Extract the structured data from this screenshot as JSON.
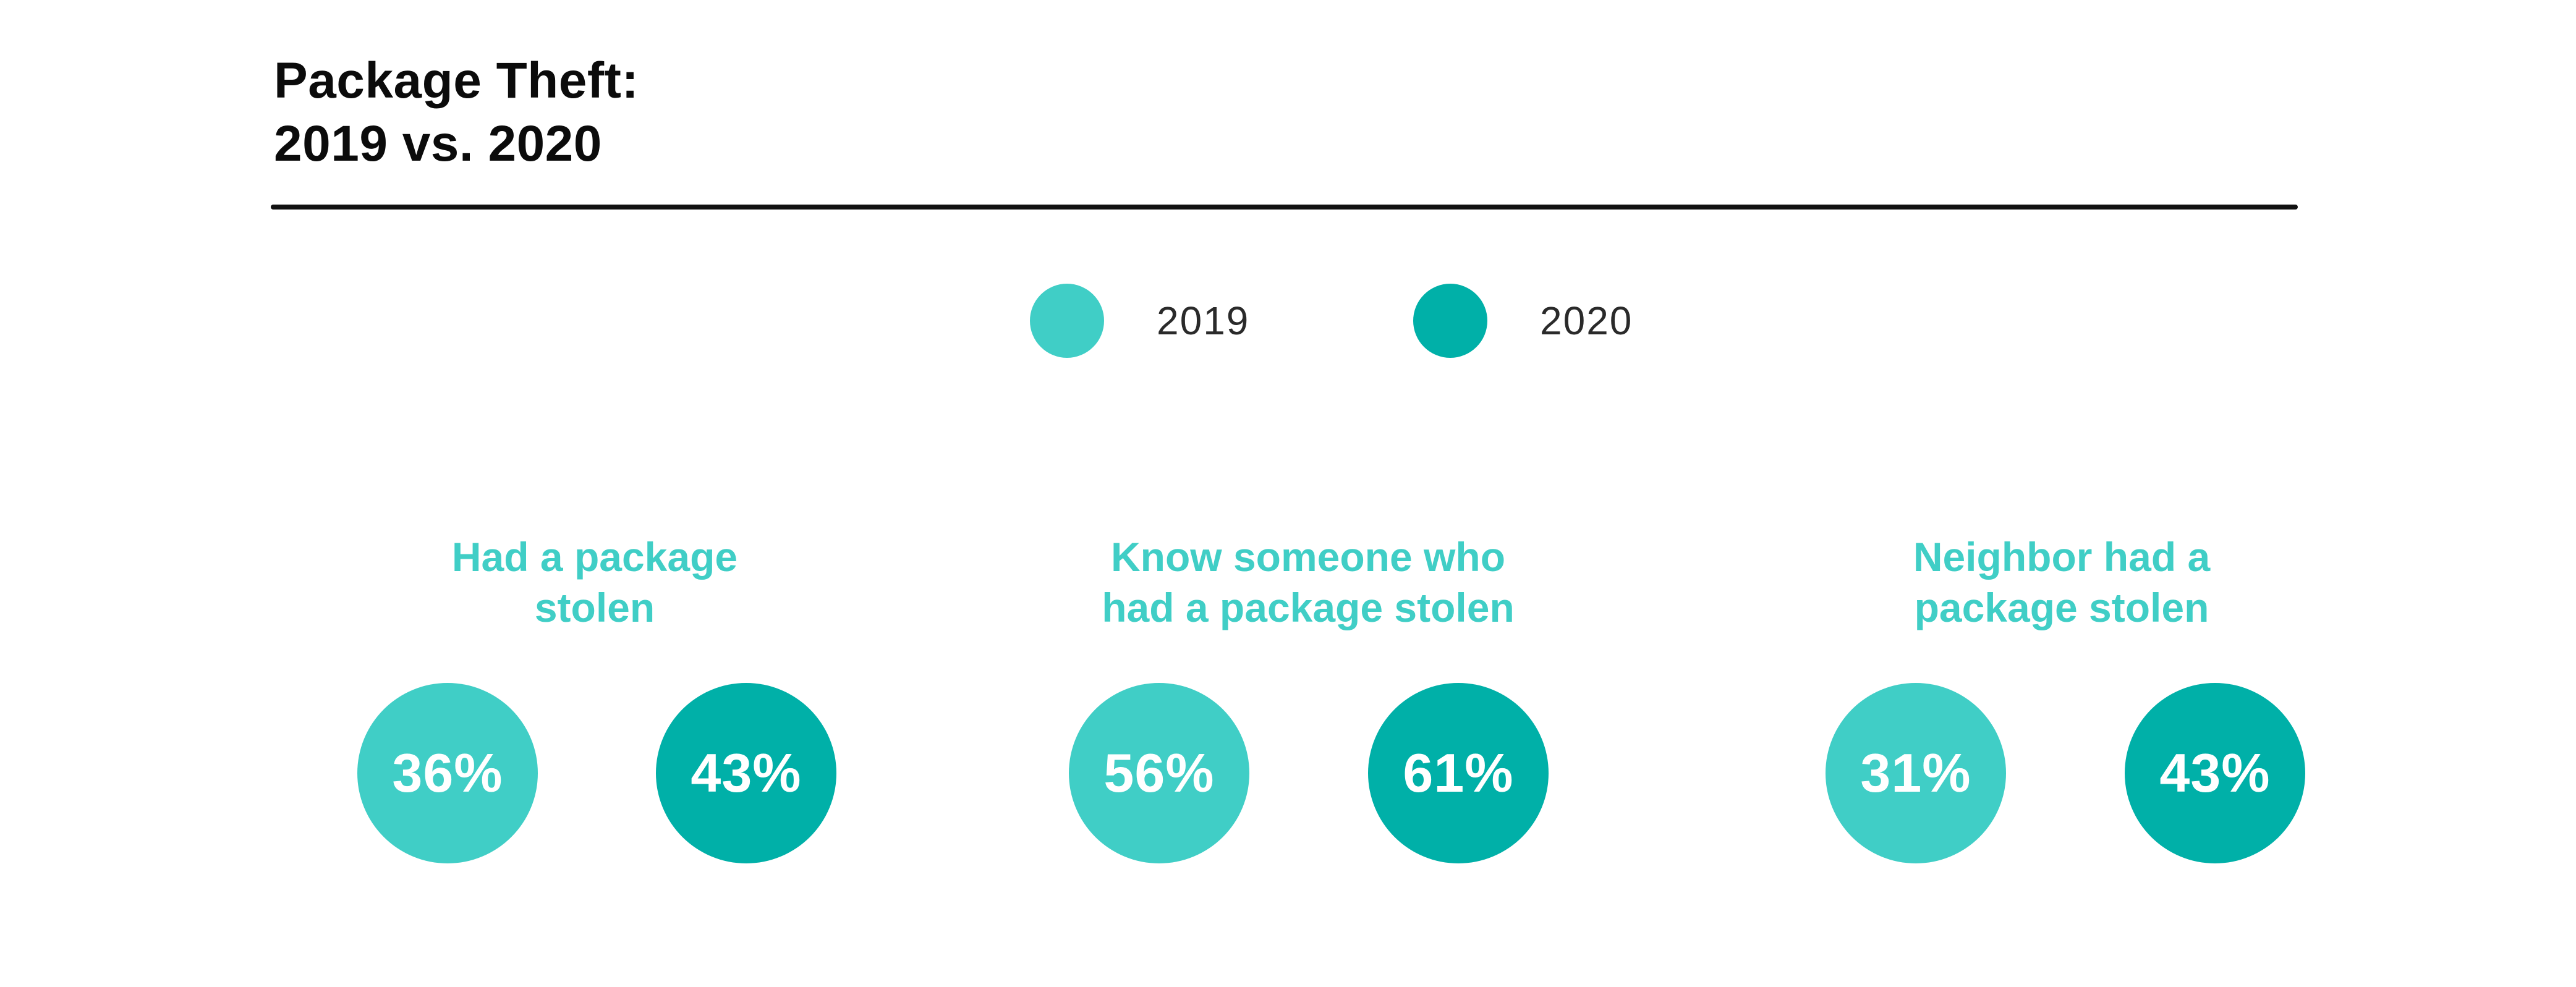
{
  "title_lines": [
    "Package Theft:",
    "2019 vs. 2020"
  ],
  "colors": {
    "series_2019": "#40cec6",
    "series_2020": "#00b0a8",
    "rule": "#111111",
    "title": "#0b0b0b"
  },
  "legend": [
    {
      "label": "2019",
      "color": "#40cec6"
    },
    {
      "label": "2020",
      "color": "#00b0a8"
    }
  ],
  "chart_data": {
    "type": "bubble-comparison",
    "title": "Package Theft: 2019 vs. 2020",
    "categories": [
      {
        "lines": [
          "Had a package",
          "stolen"
        ]
      },
      {
        "lines": [
          "Know someone who",
          "had a package stolen"
        ]
      },
      {
        "lines": [
          "Neighbor had a",
          "package stolen"
        ]
      }
    ],
    "series": [
      {
        "name": "2019",
        "values": [
          36,
          56,
          31
        ],
        "labels": [
          "36%",
          "56%",
          "31%"
        ]
      },
      {
        "name": "2020",
        "values": [
          43,
          61,
          43
        ],
        "labels": [
          "43%",
          "61%",
          "43%"
        ]
      }
    ],
    "unit": "%",
    "legend_position": "top-center"
  }
}
